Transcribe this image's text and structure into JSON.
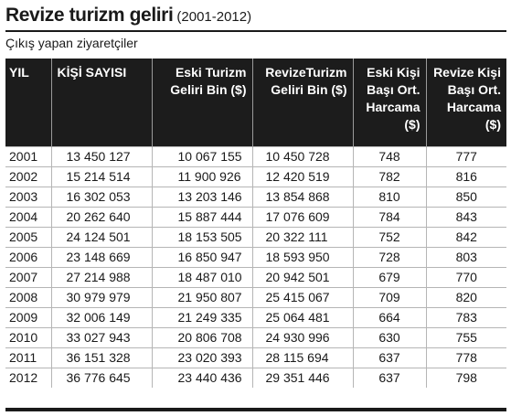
{
  "title": {
    "main": "Revize turizm geliri",
    "years": "(2001-2012)"
  },
  "subtitle": "Çıkış yapan ziyaretçiler",
  "table": {
    "headers": [
      "YIL",
      "KİŞİ SAYISI",
      "Eski Turizm Geliri Bin ($)",
      "RevizeTurizm Geliri Bin ($)",
      "Eski Kişi Başı Ort. Harcama ($)",
      "Revize Kişi Başı Ort. Harcama ($)"
    ],
    "rows": [
      [
        "2001",
        "13 450 127",
        "10 067 155",
        "10 450 728",
        "748",
        "777"
      ],
      [
        "2002",
        "15 214 514",
        "11 900 926",
        "12 420 519",
        "782",
        "816"
      ],
      [
        "2003",
        "16 302 053",
        "13 203 146",
        "13 854 868",
        "810",
        "850"
      ],
      [
        "2004",
        "20 262 640",
        "15 887 444",
        "17 076 609",
        "784",
        "843"
      ],
      [
        "2005",
        "24 124 501",
        "18 153 505",
        "20 322 111",
        "752",
        "842"
      ],
      [
        "2006",
        "23 148 669",
        "16 850 947",
        "18 593 950",
        "728",
        "803"
      ],
      [
        "2007",
        "27 214 988",
        "18 487 010",
        "20 942 501",
        "679",
        "770"
      ],
      [
        "2008",
        "30 979 979",
        "21 950 807",
        "25 415 067",
        "709",
        "820"
      ],
      [
        "2009",
        "32 006 149",
        "21 249 335",
        "25 064 481",
        "664",
        "783"
      ],
      [
        "2010",
        "33 027 943",
        "20 806 708",
        "24 930 996",
        "630",
        "755"
      ],
      [
        "2011",
        "36 151 328",
        "23 020 393",
        "28 115 694",
        "637",
        "778"
      ],
      [
        "2012",
        "36 776 645",
        "23 440 436",
        "29 351 446",
        "637",
        "798"
      ]
    ]
  }
}
